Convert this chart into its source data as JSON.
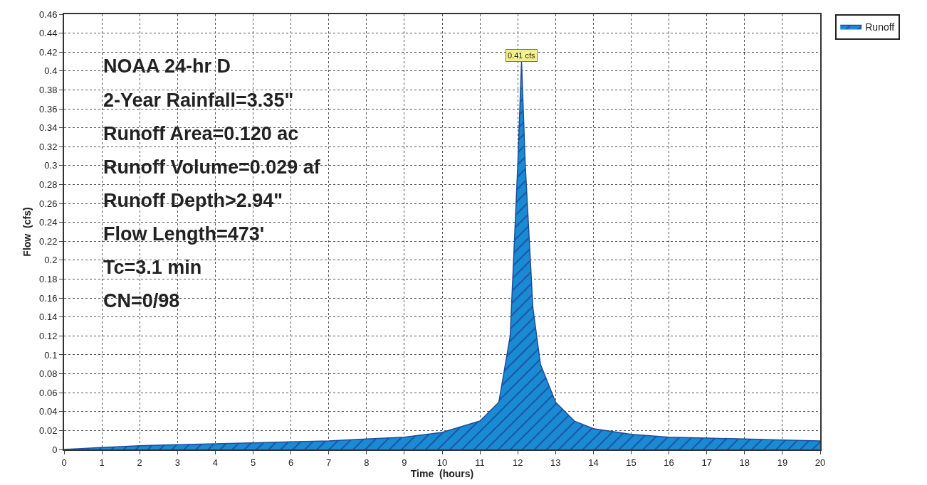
{
  "chart_data": {
    "type": "area",
    "xlabel": "Time  (hours)",
    "ylabel": "Flow  (cfs)",
    "x": [
      0,
      1,
      2,
      3,
      4,
      5,
      6,
      7,
      8,
      9,
      10,
      11,
      11.5,
      11.8,
      12.0,
      12.1,
      12.2,
      12.4,
      12.6,
      13,
      13.5,
      14,
      15,
      16,
      17,
      18,
      19,
      20
    ],
    "series": [
      {
        "name": "Runoff",
        "color": "#1a8ad4",
        "values": [
          0,
          0.002,
          0.004,
          0.005,
          0.006,
          0.007,
          0.008,
          0.009,
          0.011,
          0.013,
          0.018,
          0.03,
          0.05,
          0.12,
          0.3,
          0.41,
          0.3,
          0.15,
          0.09,
          0.05,
          0.03,
          0.022,
          0.016,
          0.013,
          0.012,
          0.011,
          0.01,
          0.009
        ]
      }
    ],
    "xlim": [
      0,
      20
    ],
    "xticks": [
      0,
      1,
      2,
      3,
      4,
      5,
      6,
      7,
      8,
      9,
      10,
      11,
      12,
      13,
      14,
      15,
      16,
      17,
      18,
      19,
      20
    ],
    "ylim": [
      0,
      0.46
    ],
    "yticks": [
      0,
      0.02,
      0.04,
      0.06,
      0.08,
      0.1,
      0.12,
      0.14,
      0.16,
      0.18,
      0.2,
      0.22,
      0.24,
      0.26,
      0.28,
      0.3,
      0.32,
      0.34,
      0.36,
      0.38,
      0.4,
      0.42,
      0.44,
      0.46
    ],
    "annotations": [
      {
        "text": "0.41 cfs",
        "x": 12.1,
        "y": 0.41
      },
      "NOAA 24-hr D",
      "2-Year Rainfall=3.35\"",
      "Runoff Area=0.120 ac",
      "Runoff Volume=0.029 af",
      "Runoff Depth>2.94\"",
      "Flow Length=473'",
      "Tc=3.1 min",
      "CN=0/98"
    ],
    "grid": true,
    "legend": "top right",
    "marker": "none",
    "line_style": "solid"
  }
}
